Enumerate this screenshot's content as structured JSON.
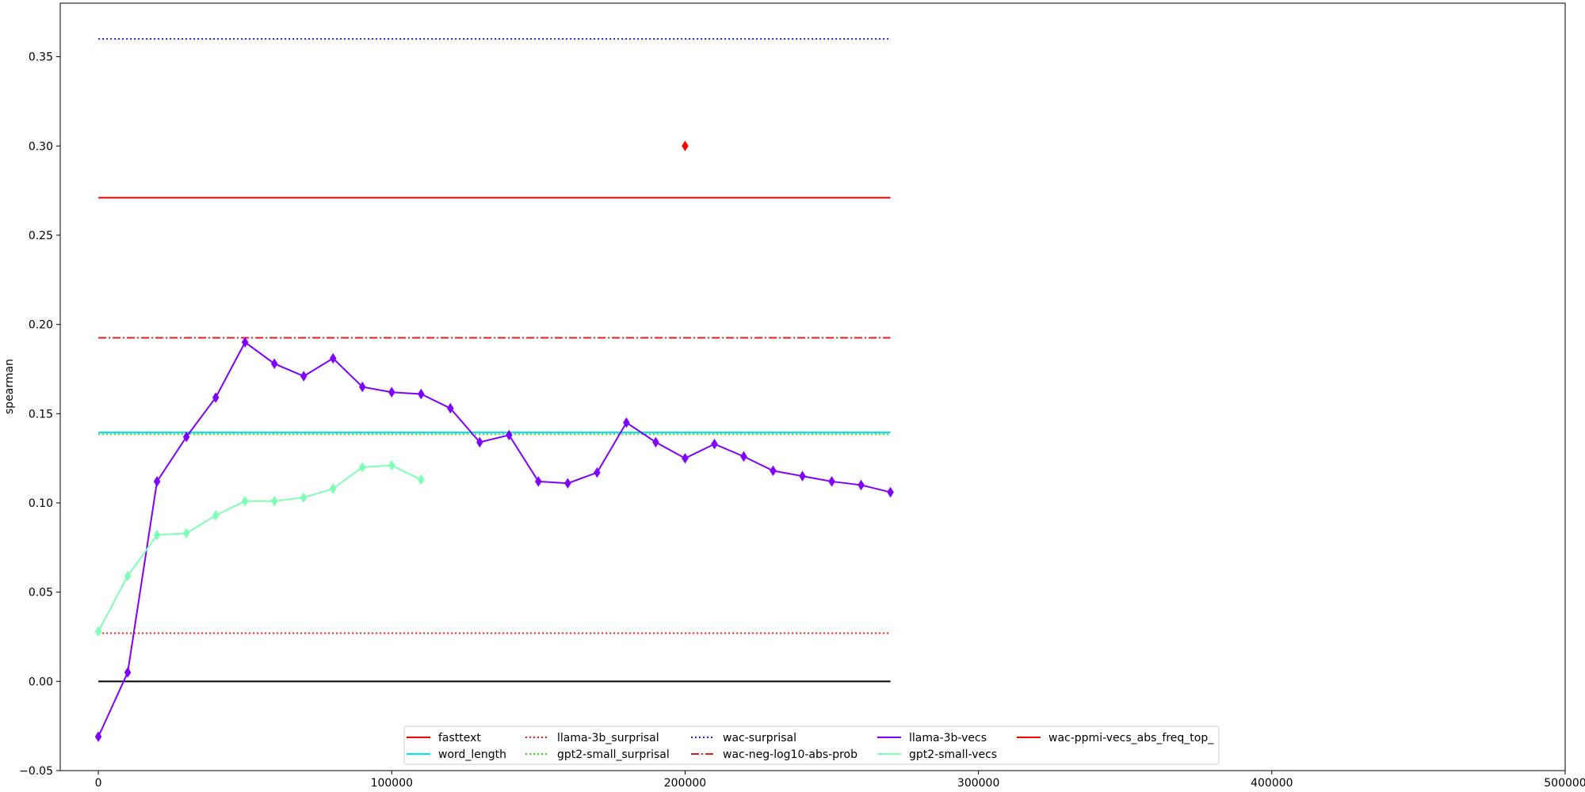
{
  "chart_data": {
    "type": "line",
    "title": "",
    "xlabel": "",
    "ylabel": "spearman",
    "xlim": [
      -13000,
      500000
    ],
    "ylim": [
      -0.05,
      0.38
    ],
    "xticks": [
      0,
      100000,
      200000,
      300000,
      400000,
      500000
    ],
    "xtick_labels": [
      "0",
      "100000",
      "200000",
      "300000",
      "400000",
      "500000"
    ],
    "yticks": [
      -0.05,
      0.0,
      0.05,
      0.1,
      0.15,
      0.2,
      0.25,
      0.3,
      0.35
    ],
    "ytick_labels": [
      "−0.05",
      "0.00",
      "0.05",
      "0.10",
      "0.15",
      "0.20",
      "0.25",
      "0.30",
      "0.35"
    ],
    "grid": false,
    "legend_position": "bottom-center",
    "zero_line": {
      "y": 0.0,
      "x": [
        0,
        270000
      ],
      "color": "#000000"
    },
    "series": [
      {
        "name": "fasttext",
        "kind": "hline",
        "y": 0.271,
        "x": [
          0,
          270000
        ],
        "color": "#ff0000",
        "dash": "solid"
      },
      {
        "name": "word_length",
        "kind": "hline",
        "y": 0.1395,
        "x": [
          0,
          270000
        ],
        "color": "#00e5ff",
        "dash": "solid"
      },
      {
        "name": "llama-3b_surprisal",
        "kind": "hline",
        "y": 0.027,
        "x": [
          0,
          270000
        ],
        "color": "#e0201b",
        "dash": "dotted"
      },
      {
        "name": "gpt2-small_surprisal",
        "kind": "hline",
        "y": 0.1385,
        "x": [
          0,
          270000
        ],
        "color": "#2fdc14",
        "dash": "dotted"
      },
      {
        "name": "wac-surprisal",
        "kind": "hline",
        "y": 0.36,
        "x": [
          0,
          270000
        ],
        "color": "#1f1fd0",
        "dash": "dotted"
      },
      {
        "name": "wac-neg-log10-abs-prob",
        "kind": "hline",
        "y": 0.1925,
        "x": [
          0,
          270000
        ],
        "color": "#e0201b",
        "dash": "dashdot"
      },
      {
        "name": "llama-3b-vecs",
        "kind": "line",
        "color": "#7f00ff",
        "marker": "diamond",
        "x": [
          0,
          10000,
          20000,
          30000,
          40000,
          50000,
          60000,
          70000,
          80000,
          90000,
          100000,
          110000,
          120000,
          130000,
          140000,
          150000,
          160000,
          170000,
          180000,
          190000,
          200000,
          210000,
          220000,
          230000,
          240000,
          250000,
          260000,
          270000
        ],
        "y": [
          -0.031,
          0.005,
          0.112,
          0.137,
          0.159,
          0.19,
          0.178,
          0.171,
          0.181,
          0.165,
          0.162,
          0.161,
          0.153,
          0.134,
          0.138,
          0.112,
          0.111,
          0.117,
          0.145,
          0.134,
          0.125,
          0.133,
          0.126,
          0.118,
          0.115,
          0.112,
          0.11,
          0.106
        ]
      },
      {
        "name": "gpt2-small-vecs",
        "kind": "line",
        "color": "#80ffb4",
        "marker": "diamond",
        "x": [
          0,
          10000,
          20000,
          30000,
          40000,
          50000,
          60000,
          70000,
          80000,
          90000,
          100000,
          110000
        ],
        "y": [
          0.028,
          0.059,
          0.082,
          0.083,
          0.093,
          0.101,
          0.101,
          0.103,
          0.108,
          0.12,
          0.121,
          0.113
        ]
      },
      {
        "name": "wac-ppmi-vecs_abs_freq_top_",
        "kind": "scatter",
        "color": "#ff0000",
        "marker": "diamond",
        "x": [
          200000
        ],
        "y": [
          0.3
        ]
      }
    ]
  }
}
